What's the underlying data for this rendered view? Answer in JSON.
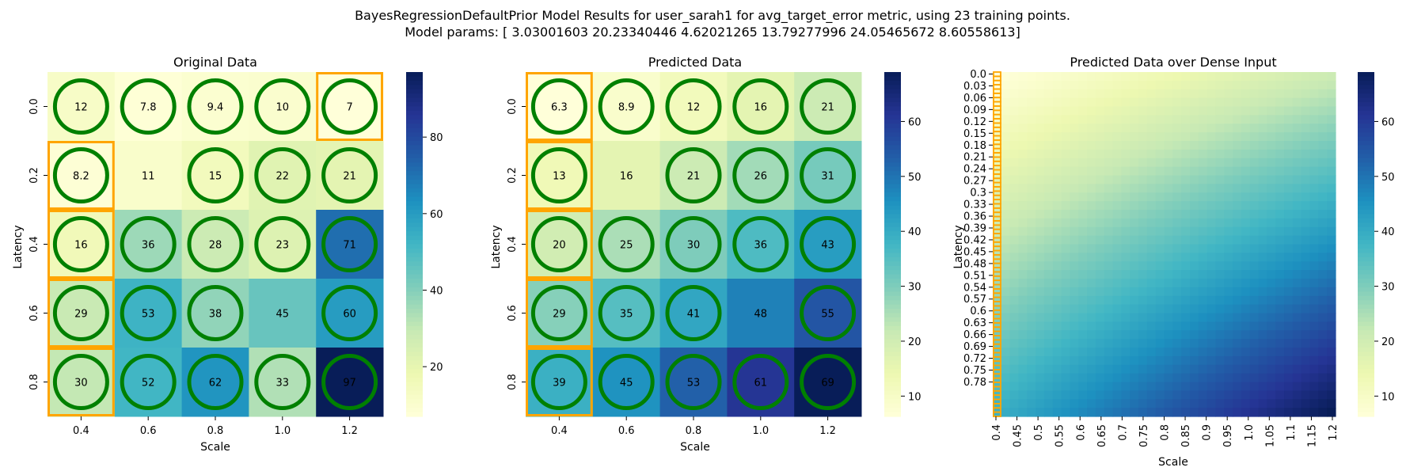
{
  "suptitle": {
    "line1": "BayesRegressionDefaultPrior Model Results for user_sarah1 for avg_target_error metric, using 23 training points.",
    "line2": "Model params: [ 3.03001603 20.23340446  4.62021265 13.79277996 24.05465672  8.60558613]"
  },
  "chart_data": [
    {
      "type": "heatmap",
      "title": "Original Data",
      "xlabel": "Scale",
      "ylabel": "Latency",
      "x_ticks": [
        "0.4",
        "0.6",
        "0.8",
        "1.0",
        "1.2"
      ],
      "y_ticks": [
        "0.0",
        "0.2",
        "0.4",
        "0.6",
        "0.8"
      ],
      "values": [
        [
          12,
          7.8,
          9.4,
          10,
          7
        ],
        [
          8.2,
          11,
          15,
          22,
          21
        ],
        [
          16,
          36,
          28,
          23,
          71
        ],
        [
          29,
          53,
          38,
          45,
          60
        ],
        [
          30,
          52,
          62,
          33,
          97
        ]
      ],
      "cell_labels": [
        [
          "12",
          "7.8",
          "9.4",
          "10",
          "7"
        ],
        [
          "8.2",
          "11",
          "15",
          "22",
          "21"
        ],
        [
          "16",
          "36",
          "28",
          "23",
          "71"
        ],
        [
          "29",
          "53",
          "38",
          "45",
          "60"
        ],
        [
          "30",
          "52",
          "62",
          "33",
          "97"
        ]
      ],
      "circles": [
        [
          true,
          true,
          true,
          true,
          true
        ],
        [
          true,
          false,
          true,
          true,
          true
        ],
        [
          true,
          true,
          true,
          true,
          true
        ],
        [
          true,
          true,
          true,
          false,
          true
        ],
        [
          true,
          true,
          true,
          true,
          true
        ]
      ],
      "boxes": [
        [
          0,
          4
        ],
        [
          1,
          0
        ],
        [
          2,
          0
        ],
        [
          3,
          0
        ],
        [
          4,
          0
        ]
      ],
      "vmin": 7,
      "vmax": 97,
      "colorbar_ticks": [
        "20",
        "40",
        "60",
        "80"
      ],
      "colorbar_tick_values": [
        20,
        40,
        60,
        80
      ],
      "colormap": "YlGnBu"
    },
    {
      "type": "heatmap",
      "title": "Predicted Data",
      "xlabel": "Scale",
      "ylabel": "Latency",
      "x_ticks": [
        "0.4",
        "0.6",
        "0.8",
        "1.0",
        "1.2"
      ],
      "y_ticks": [
        "0.0",
        "0.2",
        "0.4",
        "0.6",
        "0.8"
      ],
      "values": [
        [
          6.3,
          8.9,
          12,
          16,
          21
        ],
        [
          13,
          16,
          21,
          26,
          31
        ],
        [
          20,
          25,
          30,
          36,
          43
        ],
        [
          29,
          35,
          41,
          48,
          55
        ],
        [
          39,
          45,
          53,
          61,
          69
        ]
      ],
      "cell_labels": [
        [
          "6.3",
          "8.9",
          "12",
          "16",
          "21"
        ],
        [
          "13",
          "16",
          "21",
          "26",
          "31"
        ],
        [
          "20",
          "25",
          "30",
          "36",
          "43"
        ],
        [
          "29",
          "35",
          "41",
          "48",
          "55"
        ],
        [
          "39",
          "45",
          "53",
          "61",
          "69"
        ]
      ],
      "circles": [
        [
          true,
          true,
          true,
          true,
          true
        ],
        [
          true,
          false,
          true,
          true,
          true
        ],
        [
          true,
          true,
          true,
          true,
          true
        ],
        [
          true,
          true,
          true,
          false,
          true
        ],
        [
          true,
          true,
          true,
          true,
          true
        ]
      ],
      "boxes": [
        [
          0,
          0
        ],
        [
          1,
          0
        ],
        [
          2,
          0
        ],
        [
          3,
          0
        ],
        [
          4,
          0
        ]
      ],
      "vmin": 6.3,
      "vmax": 69,
      "colorbar_ticks": [
        "10",
        "20",
        "30",
        "40",
        "50",
        "60"
      ],
      "colorbar_tick_values": [
        10,
        20,
        30,
        40,
        50,
        60
      ],
      "colormap": "YlGnBu"
    },
    {
      "type": "heatmap",
      "title": "Predicted Data over Dense Input",
      "xlabel": "Scale",
      "ylabel": "Latency",
      "x_ticks": [
        "0.4",
        "0.45",
        "0.5",
        "0.55",
        "0.6",
        "0.65",
        "0.7",
        "0.75",
        "0.8",
        "0.85",
        "0.9",
        "0.95",
        "1.0",
        "1.05",
        "1.1",
        "1.15",
        "1.2"
      ],
      "y_ticks": [
        "0.0",
        "0.03",
        "0.06",
        "0.09",
        "0.12",
        "0.15",
        "0.18",
        "0.21",
        "0.24",
        "0.27",
        "0.3",
        "0.33",
        "0.36",
        "0.39",
        "0.42",
        "0.45",
        "0.48",
        "0.51",
        "0.54",
        "0.57",
        "0.6",
        "0.63",
        "0.66",
        "0.69",
        "0.72",
        "0.75",
        "0.78"
      ],
      "x_range": [
        0.4,
        1.2
      ],
      "y_range": [
        0.0,
        0.8
      ],
      "corner_values": {
        "top_left": 6.3,
        "top_right": 21,
        "bottom_left": 39,
        "bottom_right": 69
      },
      "vmin": 6.3,
      "vmax": 69,
      "colorbar_ticks": [
        "10",
        "20",
        "30",
        "40",
        "50",
        "60"
      ],
      "colorbar_tick_values": [
        10,
        20,
        30,
        40,
        50,
        60
      ],
      "colormap": "YlGnBu",
      "boxed_column": "0.4"
    }
  ],
  "colors": {
    "circle": "#008000",
    "box": "#ffa500",
    "text_dark": "#262626",
    "text_light": "#ffffff"
  }
}
